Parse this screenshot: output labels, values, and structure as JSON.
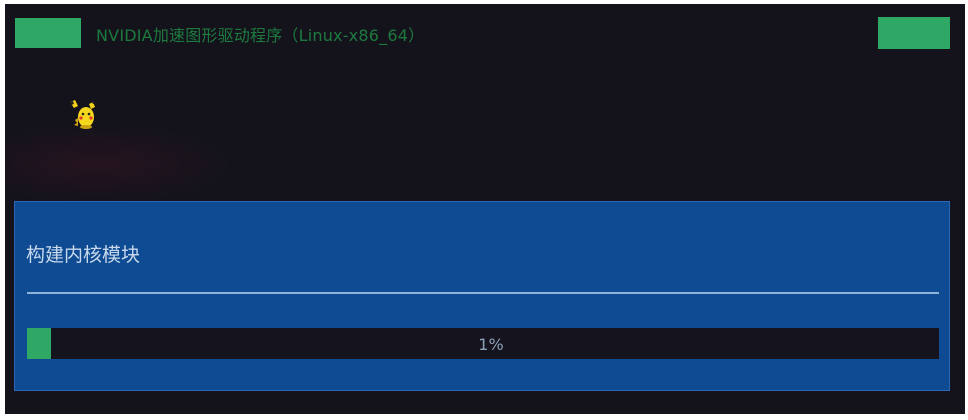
{
  "window": {
    "title": "NVIDIA加速图形驱动程序（Linux-x86_64）"
  },
  "mascot": {
    "icon": "pikachu-icon"
  },
  "dialog": {
    "label": "构建内核模块"
  },
  "progress": {
    "value": 0.01,
    "text": "1%"
  },
  "colors": {
    "background": "#14131b",
    "accent_green": "#2fa866",
    "title_green": "#1d7a3f",
    "dialog_blue": "#0e4b92",
    "label_text": "#c8d8ec",
    "separator": "#8fb2dd"
  }
}
